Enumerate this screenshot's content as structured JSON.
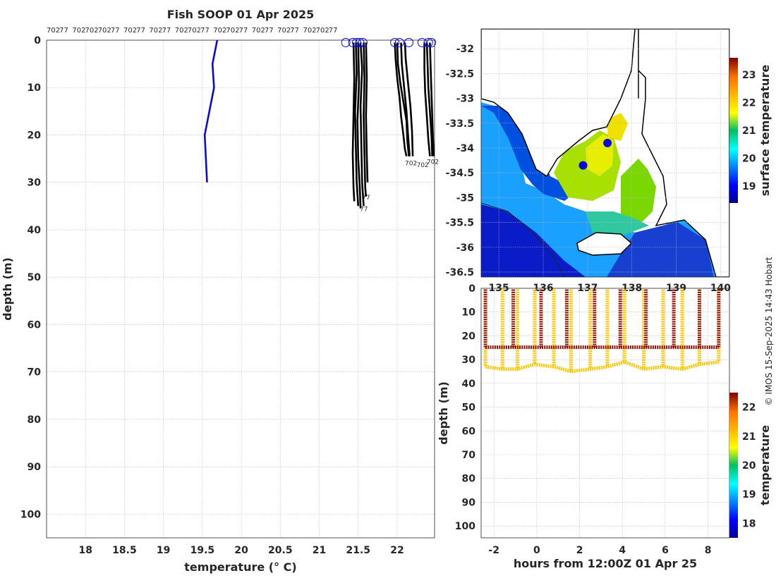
{
  "chart_data": [
    {
      "id": "profiles",
      "type": "line",
      "title": "Fish SOOP 01 Apr 2025",
      "xlabel": "temperature (° C)",
      "ylabel": "depth (m)",
      "xlim": [
        17.5,
        22.48
      ],
      "ylim": [
        105,
        0
      ],
      "y_inverted": true,
      "grid": true,
      "xticks": [
        18,
        18.5,
        19,
        19.5,
        20,
        20.5,
        21,
        21.5,
        22
      ],
      "yticks": [
        0,
        10,
        20,
        30,
        40,
        50,
        60,
        70,
        80,
        90,
        100
      ],
      "top_labels": [
        "702",
        "77",
        "702",
        "702",
        "702",
        "77",
        "702",
        "77",
        "702",
        "77",
        "702",
        "702",
        "77",
        "702",
        "702",
        "77",
        "702",
        "77",
        "702",
        "77",
        "702",
        "702",
        "77"
      ],
      "end_labels": [
        "702",
        "702",
        "702",
        "77",
        "77"
      ],
      "series": [
        {
          "color": "#0a0ad8",
          "temperature": [
            19.69,
            19.63,
            19.65,
            19.53,
            19.56
          ],
          "depth": [
            0,
            5,
            10,
            20,
            30
          ]
        },
        {
          "color": "#000000",
          "temperature": [
            21.44,
            21.45,
            21.44,
            21.43,
            21.44,
            21.45
          ],
          "depth": [
            0.5,
            8,
            16,
            24,
            31,
            34
          ]
        },
        {
          "color": "#000000",
          "temperature": [
            21.47,
            21.48,
            21.46,
            21.47,
            21.48,
            21.5
          ],
          "depth": [
            0.5,
            7,
            15,
            23,
            30,
            35
          ]
        },
        {
          "color": "#000000",
          "temperature": [
            21.5,
            21.51,
            21.49,
            21.5,
            21.52,
            21.53
          ],
          "depth": [
            0.5,
            9,
            17,
            25,
            31,
            35.5
          ]
        },
        {
          "color": "#000000",
          "temperature": [
            21.53,
            21.55,
            21.53,
            21.54,
            21.55,
            21.57
          ],
          "depth": [
            0.5,
            6,
            14,
            22,
            30,
            35
          ]
        },
        {
          "color": "#000000",
          "temperature": [
            21.57,
            21.58,
            21.57,
            21.58,
            21.59,
            21.6
          ],
          "depth": [
            0.5,
            8,
            16,
            24,
            31,
            33
          ]
        },
        {
          "color": "#000000",
          "temperature": [
            21.6,
            21.61,
            21.6,
            21.61,
            21.62
          ],
          "depth": [
            0.5,
            8,
            16,
            24,
            30
          ]
        },
        {
          "color": "#000000",
          "temperature": [
            21.97,
            21.98,
            22.0,
            22.03,
            22.05,
            22.08,
            22.1,
            22.12
          ],
          "depth": [
            0.5,
            4,
            8,
            12,
            16,
            20,
            23,
            24.5
          ]
        },
        {
          "color": "#000000",
          "temperature": [
            22.0,
            22.01,
            22.04,
            22.08,
            22.12,
            22.13,
            22.15
          ],
          "depth": [
            0.5,
            5,
            9,
            13,
            17,
            21,
            24.5
          ]
        },
        {
          "color": "#000000",
          "temperature": [
            22.05,
            22.06,
            22.09,
            22.12,
            22.14,
            22.16
          ],
          "depth": [
            0.5,
            5,
            10,
            15,
            20,
            24.5
          ]
        },
        {
          "color": "#000000",
          "temperature": [
            22.1,
            22.11,
            22.14,
            22.17,
            22.19,
            22.2
          ],
          "depth": [
            0.5,
            4,
            9,
            14,
            19,
            24.5
          ]
        },
        {
          "color": "#000000",
          "temperature": [
            22.35,
            22.35,
            22.36,
            22.38,
            22.4,
            22.42
          ],
          "depth": [
            0.5,
            6,
            11,
            16,
            21,
            24.5
          ]
        },
        {
          "color": "#000000",
          "temperature": [
            22.38,
            22.39,
            22.4,
            22.42,
            22.44,
            22.45
          ],
          "depth": [
            0.5,
            5,
            10,
            15,
            20,
            24.5
          ]
        },
        {
          "color": "#000000",
          "temperature": [
            22.42,
            22.43,
            22.44,
            22.45,
            22.46,
            22.47
          ],
          "depth": [
            0.5,
            6,
            11,
            16,
            21,
            24.5
          ]
        }
      ],
      "surface_markers": [
        21.34,
        21.43,
        21.48,
        21.52,
        21.56,
        21.97,
        22.03,
        22.15,
        22.32,
        22.4,
        22.44
      ]
    },
    {
      "id": "sst_map",
      "type": "heatmap",
      "yticks": [
        -32,
        -32.5,
        -33,
        -33.5,
        -34,
        -34.5,
        -35,
        -35.5,
        -36,
        -36.5
      ],
      "xticks": [
        135,
        136,
        137,
        138,
        139,
        140
      ],
      "xlim": [
        134.6,
        140.2
      ],
      "ylim": [
        -36.6,
        -31.6
      ],
      "colorbar_label": "surface temperature",
      "colorbar_ticks": [
        19,
        20,
        21,
        22,
        23
      ],
      "colorbar_range": [
        18.4,
        23.6
      ],
      "vessel_positions": [
        {
          "lon": 137.45,
          "lat": -33.9
        },
        {
          "lon": 136.9,
          "lat": -34.35
        }
      ]
    },
    {
      "id": "depth_time",
      "type": "scatter",
      "xlabel": "hours from 12:00Z 01 Apr 25",
      "ylabel": "depth (m)",
      "xlim": [
        -2.6,
        9
      ],
      "ylim": [
        105,
        0
      ],
      "xticks": [
        -2,
        0,
        2,
        4,
        6,
        8
      ],
      "yticks": [
        0,
        10,
        20,
        30,
        40,
        50,
        60,
        70,
        80,
        90,
        100
      ],
      "colorbar_label": "temperature",
      "colorbar_ticks": [
        18,
        19,
        20,
        21,
        22
      ],
      "colorbar_range": [
        17.5,
        22.5
      ],
      "shallow_series": {
        "temperature": 22.4,
        "x": [
          -2.4,
          -1.1,
          0.2,
          1.4,
          2.7,
          3.9,
          5.1,
          6.4,
          7.6,
          8.5
        ],
        "depth": 24.8
      },
      "deep_series": {
        "temperature": 21.1,
        "x": [
          -2.4,
          -1.6,
          -0.9,
          -0.1,
          0.8,
          1.6,
          2.5,
          3.3,
          4.1,
          5.0,
          5.9,
          6.8,
          7.6,
          8.5
        ],
        "depth": [
          33,
          34,
          34,
          32,
          33,
          35,
          34,
          33,
          31,
          34,
          33,
          34,
          32,
          31
        ]
      }
    }
  ],
  "credit": "© IMOS 15-Sep-2025 14:43 Hobart",
  "colors": {
    "profile_black": "#000000",
    "profile_blue": "#0a0ad8",
    "marker_blue": "#0a0ad8",
    "axis": "#262626"
  }
}
